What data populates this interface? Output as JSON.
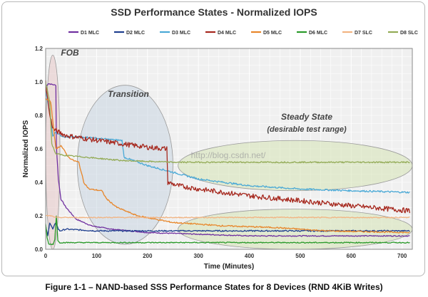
{
  "caption": "Figure 1-1 – NAND-based SSS Performance States for 8 Devices (RND 4KiB Writes)",
  "watermark": "http://blog.csdn.net/",
  "chart_data": {
    "type": "line",
    "title": "SSD Performance States - Normalized IOPS",
    "xlabel": "Time (Minutes)",
    "ylabel": "Normalized IOPS",
    "xlim": [
      0,
      720
    ],
    "ylim": [
      0,
      1.2
    ],
    "xticks": [
      0,
      100,
      200,
      300,
      400,
      500,
      600,
      700
    ],
    "yticks": [
      0.0,
      0.2,
      0.4,
      0.6,
      0.8,
      1.0,
      1.2
    ],
    "grid": true,
    "legend_position": "top",
    "regions": [
      {
        "label": "FOB",
        "color": "#e8c8c8",
        "x_range": [
          0,
          28
        ],
        "y_range": [
          0.0,
          1.16
        ]
      },
      {
        "label": "Transition",
        "color": "#c9d5e2",
        "x_range": [
          62,
          250
        ],
        "y_range": [
          0.03,
          0.98
        ]
      },
      {
        "label": "Steady State\n(desirable test range)",
        "color": "#d6e3b4",
        "x_range": [
          260,
          720
        ],
        "y_range": [
          0.35,
          0.65
        ]
      },
      {
        "label": "",
        "color": "#d6e3b4",
        "x_range": [
          260,
          720
        ],
        "y_range": [
          0.0,
          0.24
        ]
      }
    ],
    "series": [
      {
        "name": "D1 MLC",
        "color": "#7030a0",
        "points": [
          [
            0,
            0.97
          ],
          [
            5,
            0.99
          ],
          [
            20,
            0.98
          ],
          [
            21,
            0.62
          ],
          [
            25,
            0.42
          ],
          [
            30,
            0.3
          ],
          [
            40,
            0.25
          ],
          [
            60,
            0.18
          ],
          [
            90,
            0.14
          ],
          [
            130,
            0.12
          ],
          [
            200,
            0.1
          ],
          [
            300,
            0.09
          ],
          [
            400,
            0.08
          ],
          [
            500,
            0.08
          ],
          [
            600,
            0.08
          ],
          [
            715,
            0.08
          ]
        ],
        "noise": 0.003
      },
      {
        "name": "D2 MLC",
        "color": "#1f3f8f",
        "points": [
          [
            0,
            0.14
          ],
          [
            4,
            0.08
          ],
          [
            8,
            0.16
          ],
          [
            14,
            0.12
          ],
          [
            20,
            0.16
          ],
          [
            25,
            0.12
          ],
          [
            28,
            0.11
          ],
          [
            40,
            0.12
          ],
          [
            100,
            0.11
          ],
          [
            200,
            0.11
          ],
          [
            400,
            0.11
          ],
          [
            600,
            0.11
          ],
          [
            715,
            0.11
          ]
        ],
        "noise": 0.004
      },
      {
        "name": "D3 MLC",
        "color": "#4aa9d6",
        "points": [
          [
            0,
            0.95
          ],
          [
            8,
            0.82
          ],
          [
            14,
            0.68
          ],
          [
            20,
            0.7
          ],
          [
            30,
            0.68
          ],
          [
            40,
            0.67
          ],
          [
            60,
            0.67
          ],
          [
            80,
            0.67
          ],
          [
            110,
            0.66
          ],
          [
            150,
            0.65
          ],
          [
            154,
            0.55
          ],
          [
            200,
            0.5
          ],
          [
            250,
            0.46
          ],
          [
            300,
            0.42
          ],
          [
            400,
            0.38
          ],
          [
            500,
            0.36
          ],
          [
            600,
            0.35
          ],
          [
            715,
            0.34
          ]
        ],
        "noise": 0.005
      },
      {
        "name": "D4 MLC",
        "color": "#a6281e",
        "points": [
          [
            0,
            1.0
          ],
          [
            8,
            0.8
          ],
          [
            15,
            0.72
          ],
          [
            25,
            0.7
          ],
          [
            40,
            0.68
          ],
          [
            80,
            0.66
          ],
          [
            150,
            0.63
          ],
          [
            200,
            0.61
          ],
          [
            238,
            0.6
          ],
          [
            240,
            0.4
          ],
          [
            260,
            0.38
          ],
          [
            300,
            0.36
          ],
          [
            400,
            0.32
          ],
          [
            500,
            0.29
          ],
          [
            600,
            0.26
          ],
          [
            715,
            0.23
          ]
        ],
        "noise": 0.015
      },
      {
        "name": "D5 MLC",
        "color": "#e8862a",
        "points": [
          [
            0,
            0.9
          ],
          [
            10,
            0.88
          ],
          [
            20,
            0.6
          ],
          [
            30,
            0.62
          ],
          [
            45,
            0.55
          ],
          [
            55,
            0.53
          ],
          [
            65,
            0.52
          ],
          [
            75,
            0.4
          ],
          [
            85,
            0.36
          ],
          [
            110,
            0.35
          ],
          [
            120,
            0.3
          ],
          [
            140,
            0.25
          ],
          [
            180,
            0.2
          ],
          [
            250,
            0.16
          ],
          [
            350,
            0.14
          ],
          [
            450,
            0.13
          ],
          [
            550,
            0.11
          ],
          [
            715,
            0.1
          ]
        ],
        "noise": 0.004
      },
      {
        "name": "D6 MLC",
        "color": "#2a9a2a",
        "points": [
          [
            0,
            0.15
          ],
          [
            3,
            0.07
          ],
          [
            6,
            0.03
          ],
          [
            15,
            0.03
          ],
          [
            18,
            0.06
          ],
          [
            21,
            0.2
          ],
          [
            24,
            0.05
          ],
          [
            28,
            0.04
          ],
          [
            60,
            0.04
          ],
          [
            150,
            0.04
          ],
          [
            250,
            0.04
          ],
          [
            400,
            0.04
          ],
          [
            600,
            0.04
          ],
          [
            715,
            0.04
          ]
        ],
        "noise": 0.003
      },
      {
        "name": "D7 SLC",
        "color": "#f2b482",
        "points": [
          [
            0,
            0.2
          ],
          [
            10,
            0.2
          ],
          [
            20,
            0.19
          ],
          [
            50,
            0.19
          ],
          [
            100,
            0.19
          ],
          [
            200,
            0.19
          ],
          [
            400,
            0.19
          ],
          [
            600,
            0.19
          ],
          [
            715,
            0.19
          ]
        ],
        "noise": 0.003
      },
      {
        "name": "D8 SLC",
        "color": "#93ab56",
        "points": [
          [
            0,
            1.0
          ],
          [
            8,
            0.88
          ],
          [
            12,
            0.63
          ],
          [
            20,
            0.57
          ],
          [
            40,
            0.56
          ],
          [
            80,
            0.55
          ],
          [
            150,
            0.53
          ],
          [
            250,
            0.52
          ],
          [
            400,
            0.52
          ],
          [
            600,
            0.52
          ],
          [
            715,
            0.52
          ]
        ],
        "noise": 0.004
      }
    ]
  }
}
